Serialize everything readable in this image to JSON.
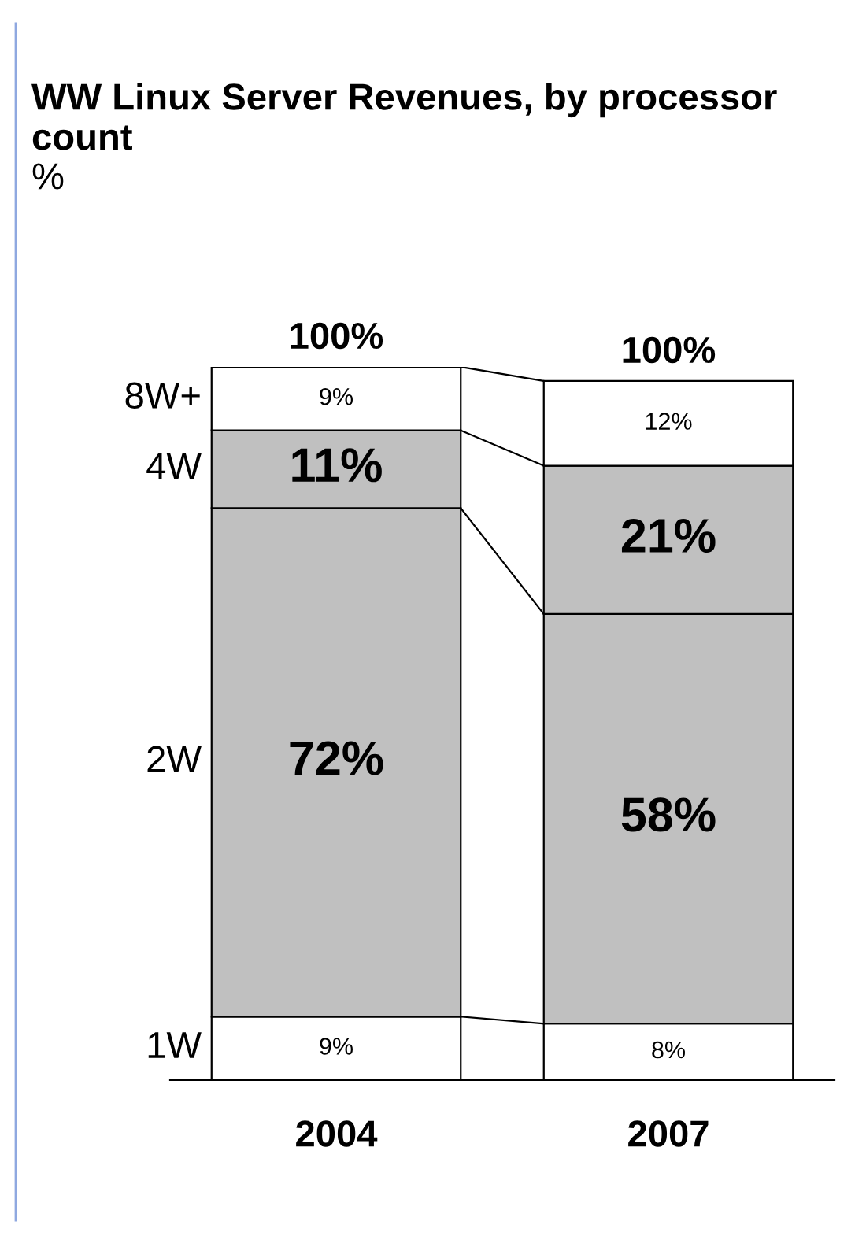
{
  "chart_data": {
    "type": "bar",
    "stacked": true,
    "title": "WW Linux Server Revenues, by processor count",
    "subtitle": "%",
    "categories": [
      "2004",
      "2007"
    ],
    "series": [
      {
        "name": "1W",
        "color": "#ffffff",
        "values": [
          9,
          8
        ],
        "value_labels": [
          "9%",
          "8%"
        ]
      },
      {
        "name": "2W",
        "color": "#c0c0c0",
        "values": [
          72,
          58
        ],
        "value_labels": [
          "72%",
          "58%"
        ]
      },
      {
        "name": "4W",
        "color": "#c0c0c0",
        "values": [
          11,
          21
        ],
        "value_labels": [
          "11%",
          "21%"
        ]
      },
      {
        "name": "8W+",
        "color": "#ffffff",
        "values": [
          9,
          12
        ],
        "value_labels": [
          "9%",
          "12%"
        ]
      }
    ],
    "totals": [
      "100%",
      "100%"
    ],
    "grid": false,
    "legend": false
  }
}
